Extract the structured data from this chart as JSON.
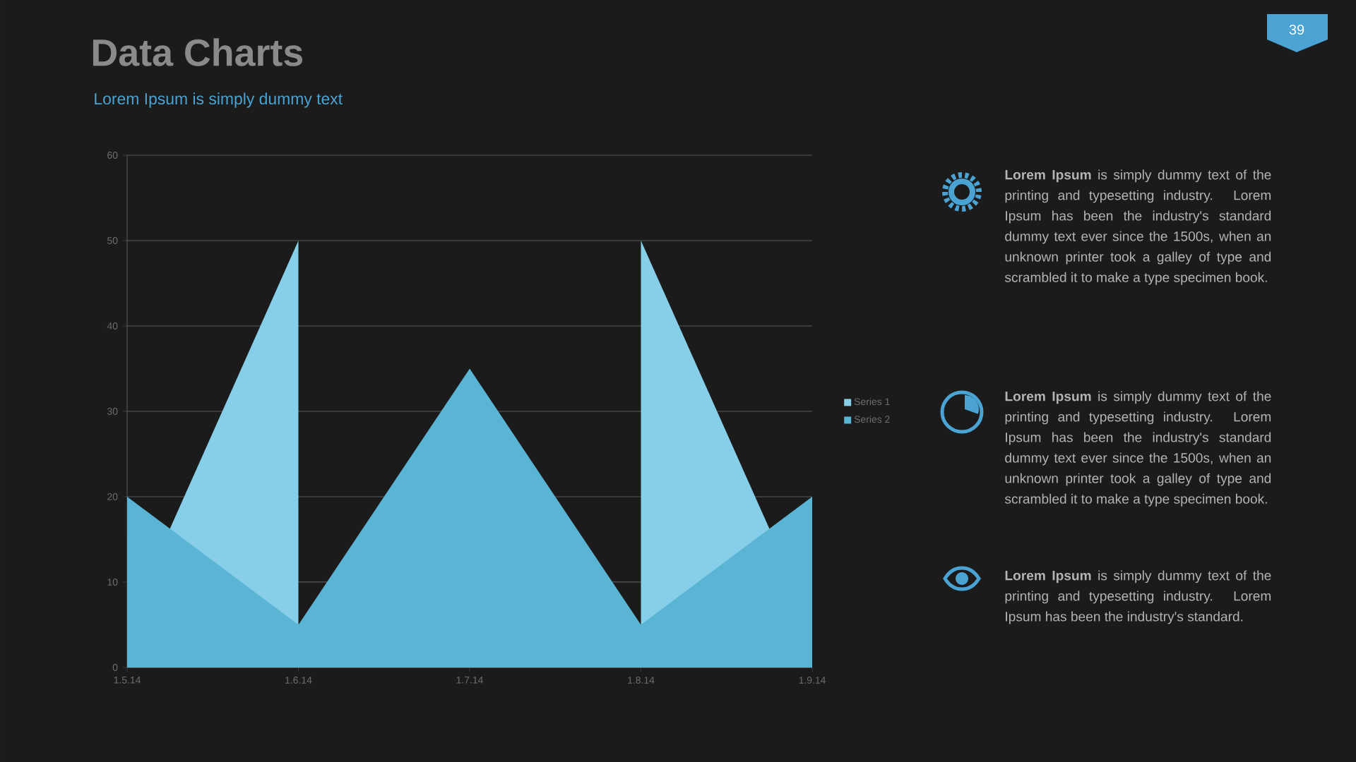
{
  "chart_data": {
    "type": "area",
    "title": "Data Charts",
    "subtitle": "Lorem Ipsum is simply dummy text",
    "categories": [
      "1.5.14",
      "1.6.14",
      "1.7.14",
      "1.8.14",
      "1.9.14"
    ],
    "series": [
      {
        "name": "Series 1",
        "color": "#87cee8",
        "values": [
          5,
          50,
          null,
          50,
          5
        ]
      },
      {
        "name": "Series 2",
        "color": "#5ab4d3",
        "values": [
          20,
          5,
          35,
          5,
          20
        ]
      }
    ],
    "ylim": [
      0,
      60
    ],
    "yticks": [
      0,
      10,
      20,
      30,
      40,
      50,
      60
    ],
    "grid": "y",
    "legend": "right",
    "annotations": [
      "**Lorem Ipsum** is simply dummy text of the printing and typesetting industry. Lorem Ipsum has been the industry's standard dummy text ever since the 1500s, when an unknown printer took a galley of type and scrambled it to make a type specimen book.",
      "**Lorem Ipsum** is simply dummy text of the printing and typesetting industry. Lorem Ipsum has been the industry's standard dummy text ever since the 1500s, when an unknown printer took a galley of type and scrambled it to make a type specimen book.",
      "**Lorem Ipsum** is simply dummy text of the printing and typesetting industry. Lorem Ipsum has been the industry's standard.",
      "39"
    ]
  }
}
